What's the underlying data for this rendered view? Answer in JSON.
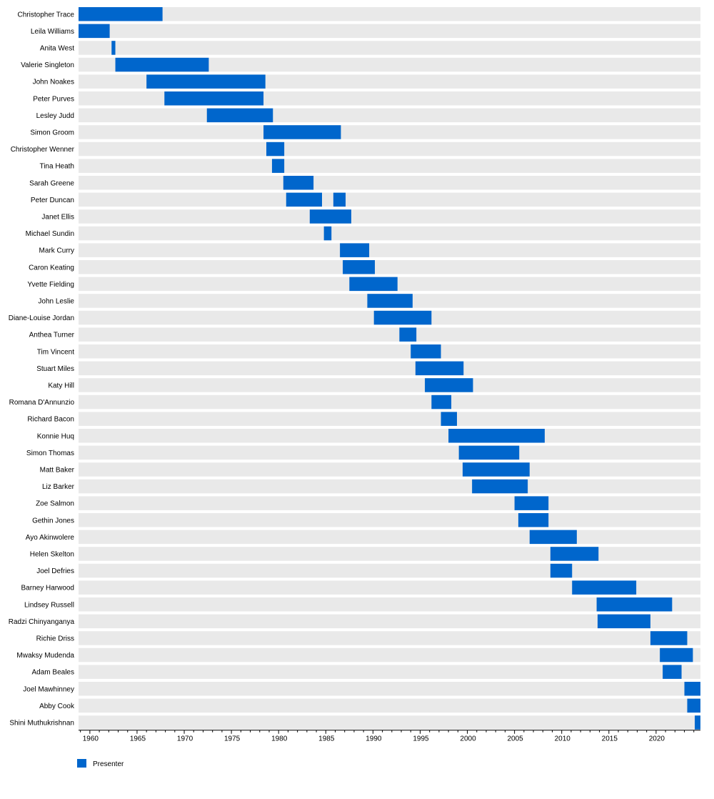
{
  "chart_data": {
    "type": "timeline",
    "title": "",
    "xlabel": "",
    "ylabel": "",
    "xlim": [
      1958.8,
      2024.7
    ],
    "x_ticks": [
      1960,
      1965,
      1970,
      1975,
      1980,
      1985,
      1990,
      1995,
      2000,
      2005,
      2010,
      2015,
      2020
    ],
    "bar_color": "#0066cc",
    "track_color": "#e9e9e9",
    "grid": false,
    "legend": {
      "placement": "bottom-left",
      "entries": [
        {
          "label": "Presenter",
          "color": "#0066cc"
        }
      ]
    },
    "presenters": [
      {
        "name": "Christopher Trace",
        "periods": [
          [
            1958.8,
            1967.7
          ]
        ]
      },
      {
        "name": "Leila Williams",
        "periods": [
          [
            1958.8,
            1962.1
          ]
        ]
      },
      {
        "name": "Anita West",
        "periods": [
          [
            1962.3,
            1962.7
          ]
        ]
      },
      {
        "name": "Valerie Singleton",
        "periods": [
          [
            1962.7,
            1972.6
          ]
        ]
      },
      {
        "name": "John Noakes",
        "periods": [
          [
            1966.0,
            1978.6
          ]
        ]
      },
      {
        "name": "Peter Purves",
        "periods": [
          [
            1967.9,
            1978.4
          ]
        ]
      },
      {
        "name": "Lesley Judd",
        "periods": [
          [
            1972.4,
            1979.4
          ]
        ]
      },
      {
        "name": "Simon Groom",
        "periods": [
          [
            1978.4,
            1986.6
          ]
        ]
      },
      {
        "name": "Christopher Wenner",
        "periods": [
          [
            1978.7,
            1980.6
          ]
        ]
      },
      {
        "name": "Tina Heath",
        "periods": [
          [
            1979.3,
            1980.6
          ]
        ]
      },
      {
        "name": "Sarah Greene",
        "periods": [
          [
            1980.5,
            1983.7
          ]
        ]
      },
      {
        "name": "Peter Duncan",
        "periods": [
          [
            1980.8,
            1984.6
          ],
          [
            1985.8,
            1987.1
          ]
        ]
      },
      {
        "name": "Janet Ellis",
        "periods": [
          [
            1983.3,
            1987.7
          ]
        ]
      },
      {
        "name": "Michael Sundin",
        "periods": [
          [
            1984.8,
            1985.6
          ]
        ]
      },
      {
        "name": "Mark Curry",
        "periods": [
          [
            1986.5,
            1989.6
          ]
        ]
      },
      {
        "name": "Caron Keating",
        "periods": [
          [
            1986.8,
            1990.2
          ]
        ]
      },
      {
        "name": "Yvette Fielding",
        "periods": [
          [
            1987.5,
            1992.6
          ]
        ]
      },
      {
        "name": "John Leslie",
        "periods": [
          [
            1989.4,
            1994.2
          ]
        ]
      },
      {
        "name": "Diane-Louise Jordan",
        "periods": [
          [
            1990.1,
            1996.2
          ]
        ]
      },
      {
        "name": "Anthea Turner",
        "periods": [
          [
            1992.8,
            1994.6
          ]
        ]
      },
      {
        "name": "Tim Vincent",
        "periods": [
          [
            1994.0,
            1997.2
          ]
        ]
      },
      {
        "name": "Stuart Miles",
        "periods": [
          [
            1994.5,
            1999.6
          ]
        ]
      },
      {
        "name": "Katy Hill",
        "periods": [
          [
            1995.5,
            2000.6
          ]
        ]
      },
      {
        "name": "Romana D'Annunzio",
        "periods": [
          [
            1996.2,
            1998.3
          ]
        ]
      },
      {
        "name": "Richard Bacon",
        "periods": [
          [
            1997.2,
            1998.9
          ]
        ]
      },
      {
        "name": "Konnie Huq",
        "periods": [
          [
            1998.0,
            2008.2
          ]
        ]
      },
      {
        "name": "Simon Thomas",
        "periods": [
          [
            1999.1,
            2005.5
          ]
        ]
      },
      {
        "name": "Matt Baker",
        "periods": [
          [
            1999.5,
            2006.6
          ]
        ]
      },
      {
        "name": "Liz Barker",
        "periods": [
          [
            2000.5,
            2006.4
          ]
        ]
      },
      {
        "name": "Zoe Salmon",
        "periods": [
          [
            2005.0,
            2008.6
          ]
        ]
      },
      {
        "name": "Gethin Jones",
        "periods": [
          [
            2005.4,
            2008.6
          ]
        ]
      },
      {
        "name": "Ayo Akinwolere",
        "periods": [
          [
            2006.6,
            2011.6
          ]
        ]
      },
      {
        "name": "Helen Skelton",
        "periods": [
          [
            2008.8,
            2013.9
          ]
        ]
      },
      {
        "name": "Joel Defries",
        "periods": [
          [
            2008.8,
            2011.1
          ]
        ]
      },
      {
        "name": "Barney Harwood",
        "periods": [
          [
            2011.1,
            2017.9
          ]
        ]
      },
      {
        "name": "Lindsey Russell",
        "periods": [
          [
            2013.7,
            2021.7
          ]
        ]
      },
      {
        "name": "Radzi Chinyanganya",
        "periods": [
          [
            2013.8,
            2019.4
          ]
        ]
      },
      {
        "name": "Richie Driss",
        "periods": [
          [
            2019.4,
            2023.3
          ]
        ]
      },
      {
        "name": "Mwaksy Mudenda",
        "periods": [
          [
            2020.4,
            2023.9
          ]
        ]
      },
      {
        "name": "Adam Beales",
        "periods": [
          [
            2020.7,
            2022.7
          ]
        ]
      },
      {
        "name": "Joel Mawhinney",
        "periods": [
          [
            2023.0,
            2024.7
          ]
        ]
      },
      {
        "name": "Abby Cook",
        "periods": [
          [
            2023.3,
            2024.7
          ]
        ]
      },
      {
        "name": "Shini Muthukrishnan",
        "periods": [
          [
            2024.1,
            2024.7
          ]
        ]
      }
    ]
  }
}
